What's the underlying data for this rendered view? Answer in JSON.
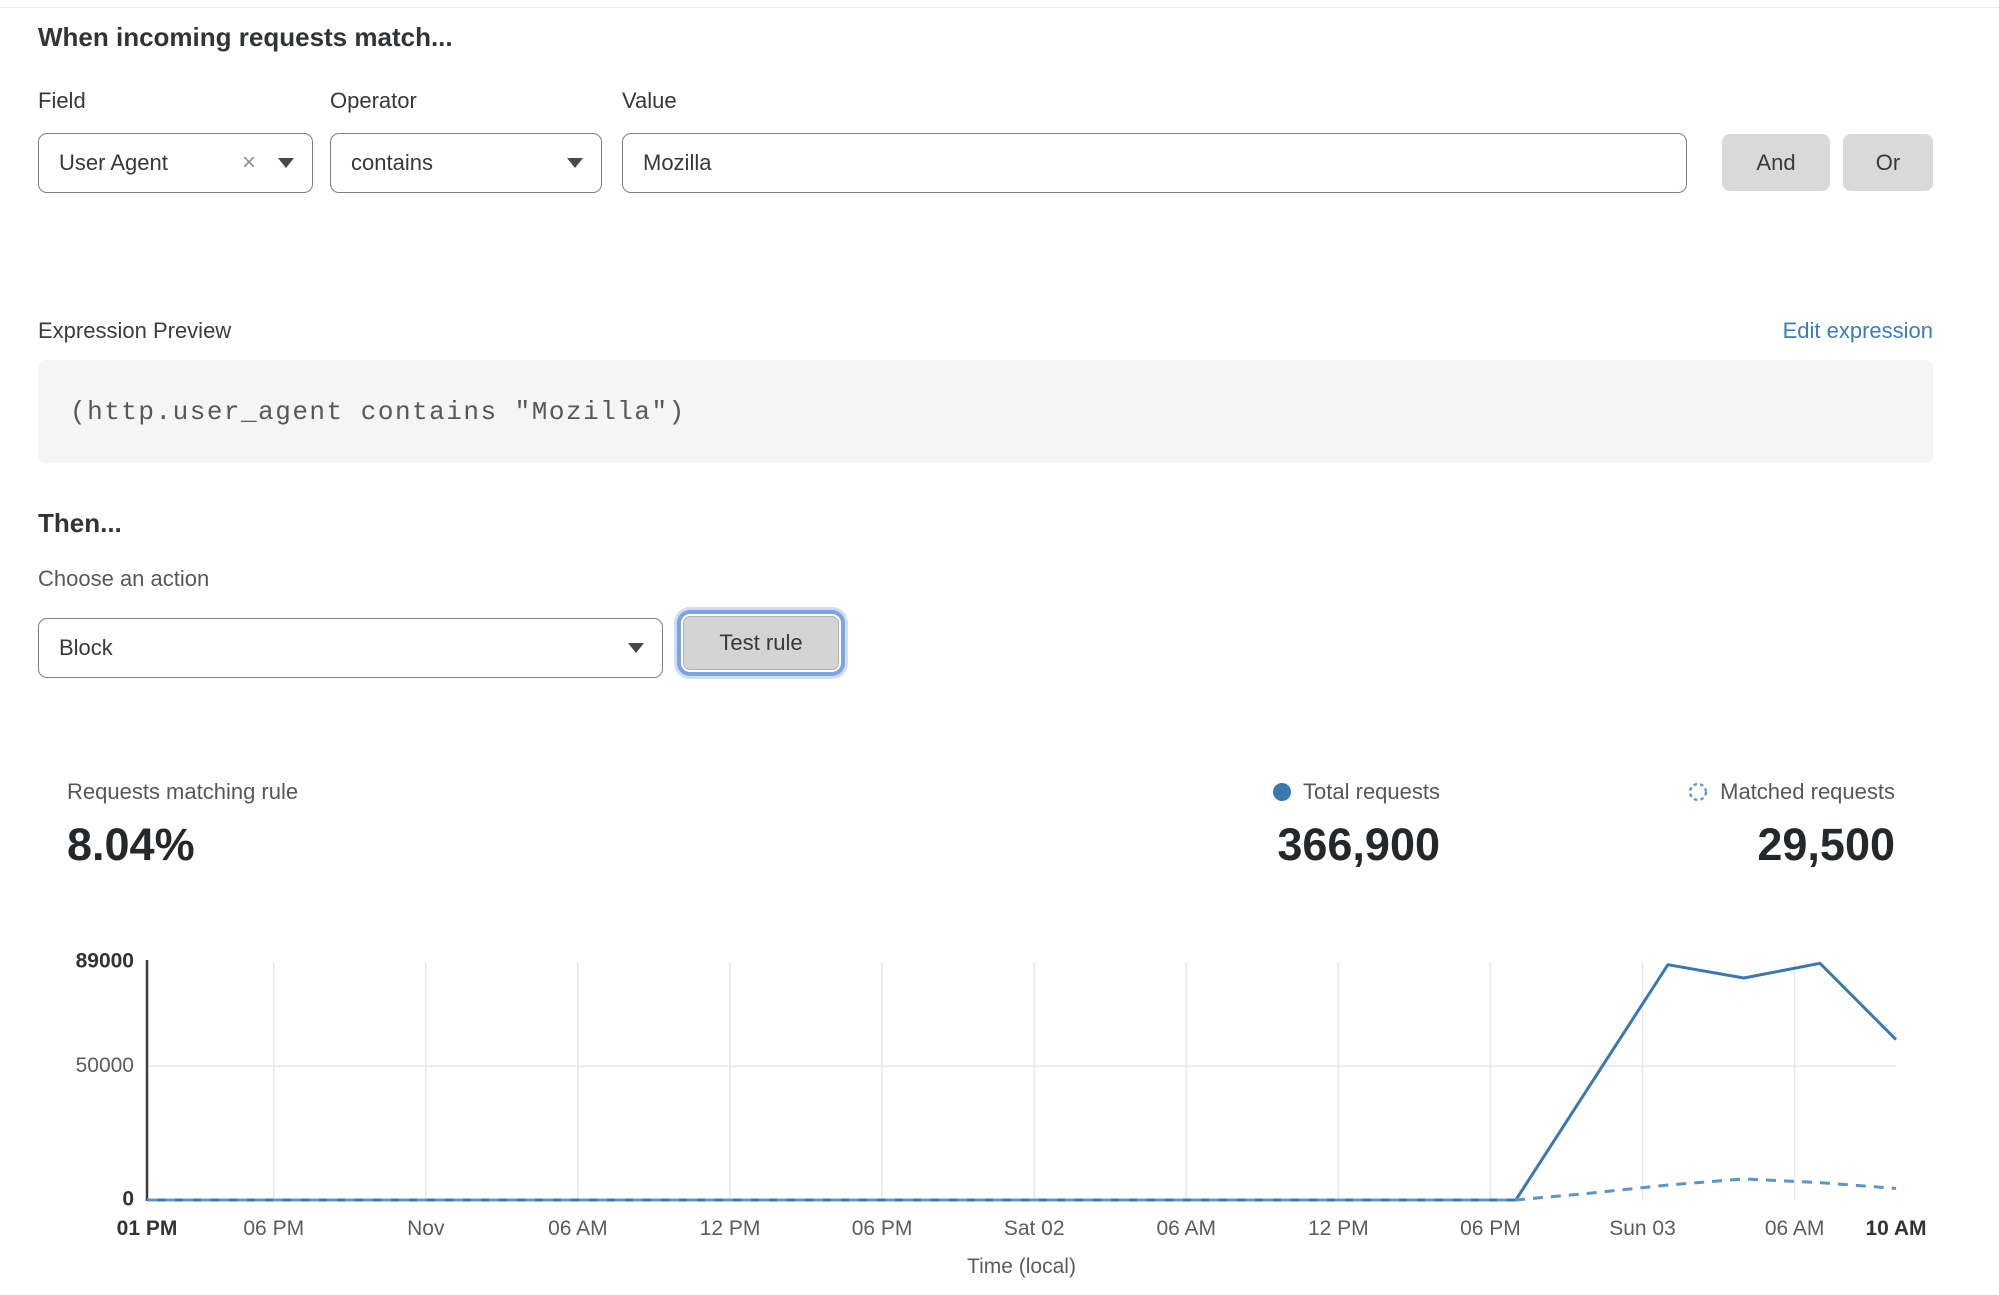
{
  "rule_builder": {
    "heading": "When incoming requests match...",
    "field": {
      "label": "Field",
      "value": "User Agent"
    },
    "operator": {
      "label": "Operator",
      "value": "contains"
    },
    "value": {
      "label": "Value",
      "value": "Mozilla"
    },
    "and_label": "And",
    "or_label": "Or"
  },
  "expression": {
    "label": "Expression Preview",
    "edit_link": "Edit expression",
    "code": "(http.user_agent contains \"Mozilla\")"
  },
  "action": {
    "heading": "Then...",
    "label": "Choose an action",
    "value": "Block",
    "test_button": "Test rule"
  },
  "stats": {
    "matching": {
      "label": "Requests matching rule",
      "value": "8.04%"
    },
    "total": {
      "label": "Total requests",
      "value": "366,900"
    },
    "matched": {
      "label": "Matched requests",
      "value": "29,500"
    }
  },
  "icons": {
    "clear": "×"
  },
  "colors": {
    "total_line": "#3b78b0",
    "matched_line": "#5d95c9",
    "link_blue": "#3d7cba",
    "grid": "#e7e7e7",
    "axis": "#3b3e40",
    "tick_gray": "#595d60",
    "tick_bold": "#313436"
  },
  "chart_data": {
    "type": "line",
    "title": "",
    "xlabel": "Time (local)",
    "ylabel": "",
    "ylim": [
      0,
      89000
    ],
    "x_domain_hours": [
      0,
      69
    ],
    "grid": "vertical at time ticks + horizontal at 50000",
    "legend_position": "top-right above chart",
    "grid_y_values": [
      50000
    ],
    "y_ticks": [
      {
        "value": 89000,
        "label": "89000",
        "bold": true
      },
      {
        "value": 50000,
        "label": "50000",
        "bold": false
      },
      {
        "value": 0,
        "label": "0",
        "bold": true
      }
    ],
    "x_ticks": [
      {
        "hour": 0,
        "label": "01 PM",
        "bold": true,
        "grid": false
      },
      {
        "hour": 5,
        "label": "06 PM",
        "bold": false,
        "grid": true
      },
      {
        "hour": 11,
        "label": "Nov",
        "bold": false,
        "grid": true
      },
      {
        "hour": 17,
        "label": "06 AM",
        "bold": false,
        "grid": true
      },
      {
        "hour": 23,
        "label": "12 PM",
        "bold": false,
        "grid": true
      },
      {
        "hour": 29,
        "label": "06 PM",
        "bold": false,
        "grid": true
      },
      {
        "hour": 35,
        "label": "Sat 02",
        "bold": false,
        "grid": true
      },
      {
        "hour": 41,
        "label": "06 AM",
        "bold": false,
        "grid": true
      },
      {
        "hour": 47,
        "label": "12 PM",
        "bold": false,
        "grid": true
      },
      {
        "hour": 53,
        "label": "06 PM",
        "bold": false,
        "grid": true
      },
      {
        "hour": 59,
        "label": "Sun 03",
        "bold": false,
        "grid": true
      },
      {
        "hour": 65,
        "label": "06 AM",
        "bold": false,
        "grid": true
      },
      {
        "hour": 69,
        "label": "10 AM",
        "bold": true,
        "grid": false
      }
    ],
    "series": [
      {
        "name": "Total requests",
        "style": "solid",
        "color": "#3b78b0",
        "points": [
          [
            0,
            0
          ],
          [
            54,
            0
          ],
          [
            60,
            88000
          ],
          [
            63,
            83000
          ],
          [
            66,
            88500
          ],
          [
            69,
            60000
          ]
        ]
      },
      {
        "name": "Matched requests",
        "style": "dashed",
        "color": "#5d95c9",
        "points": [
          [
            0,
            0
          ],
          [
            54,
            0
          ],
          [
            57,
            2600
          ],
          [
            60,
            5600
          ],
          [
            63,
            7900
          ],
          [
            66,
            6500
          ],
          [
            69,
            4300
          ]
        ]
      }
    ]
  }
}
